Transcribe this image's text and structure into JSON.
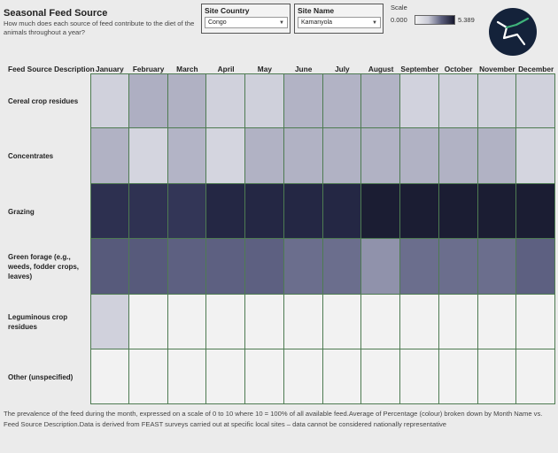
{
  "header": {
    "title": "Seasonal  Feed Source",
    "subtitle": "How much does each source of feed contribute to the diet of the animals throughout a year?"
  },
  "filters": {
    "country": {
      "label": "Site Country",
      "value": "Congo"
    },
    "site": {
      "label": "Site Name",
      "value": "Kamanyola"
    }
  },
  "scale": {
    "label": "Scale",
    "min": "0.000",
    "max": "5.389",
    "low_color": "#f2f2f2",
    "high_color": "#17192e"
  },
  "logo": {
    "icon": "feast-logo-icon"
  },
  "table": {
    "corner_label": "Feed Source Description",
    "months": [
      "January",
      "February",
      "March",
      "April",
      "May",
      "June",
      "July",
      "August",
      "September",
      "October",
      "November",
      "December"
    ],
    "rows": [
      {
        "label": "Cereal crop residues",
        "colors": [
          "#d0d1dc",
          "#aeafc2",
          "#b0b1c3",
          "#d0d1dc",
          "#cfd0db",
          "#b2b3c5",
          "#b2b3c5",
          "#b2b3c5",
          "#d1d2dd",
          "#d0d1dc",
          "#d0d1dc",
          "#d0d1dc"
        ]
      },
      {
        "label": "Concentrates",
        "colors": [
          "#b1b2c4",
          "#d4d5df",
          "#b3b4c6",
          "#d4d5df",
          "#b1b2c4",
          "#b1b2c4",
          "#b1b2c4",
          "#b1b2c4",
          "#b1b2c4",
          "#b1b2c4",
          "#b1b2c4",
          "#d4d5df"
        ]
      },
      {
        "label": "Grazing",
        "colors": [
          "#2d3050",
          "#2f3252",
          "#333657",
          "#242744",
          "#242744",
          "#242744",
          "#242744",
          "#1b1d33",
          "#1b1d33",
          "#1b1d33",
          "#1b1d33",
          "#1b1d33"
        ]
      },
      {
        "label": "Green forage (e.g., weeds, fodder crops, leaves)",
        "colors": [
          "#575a7b",
          "#575a7b",
          "#5d6081",
          "#5d6081",
          "#5d6081",
          "#6b6e8d",
          "#6b6e8d",
          "#9092ab",
          "#6b6e8d",
          "#6b6e8d",
          "#6b6e8d",
          "#5d6081"
        ]
      },
      {
        "label": "Leguminous crop residues",
        "colors": [
          "#d0d1dc",
          "#f2f2f2",
          "#f2f2f2",
          "#f2f2f2",
          "#f2f2f2",
          "#f2f2f2",
          "#f2f2f2",
          "#f2f2f2",
          "#f2f2f2",
          "#f2f2f2",
          "#f2f2f2",
          "#f2f2f2"
        ]
      },
      {
        "label": "Other (unspecified)",
        "colors": [
          "#f2f2f2",
          "#f2f2f2",
          "#f2f2f2",
          "#f2f2f2",
          "#f2f2f2",
          "#f2f2f2",
          "#f2f2f2",
          "#f2f2f2",
          "#f2f2f2",
          "#f2f2f2",
          "#f2f2f2",
          "#f2f2f2"
        ]
      }
    ]
  },
  "footer": "The prevalence of the feed during the month, expressed on a scale of 0 to 10 where 10 = 100% of all available feed.Average of Percentage (colour) broken down by Month Name vs. Feed Source Description.Data is derived from FEAST surveys carried out at specific local sites – data cannot be considered nationally representative"
}
